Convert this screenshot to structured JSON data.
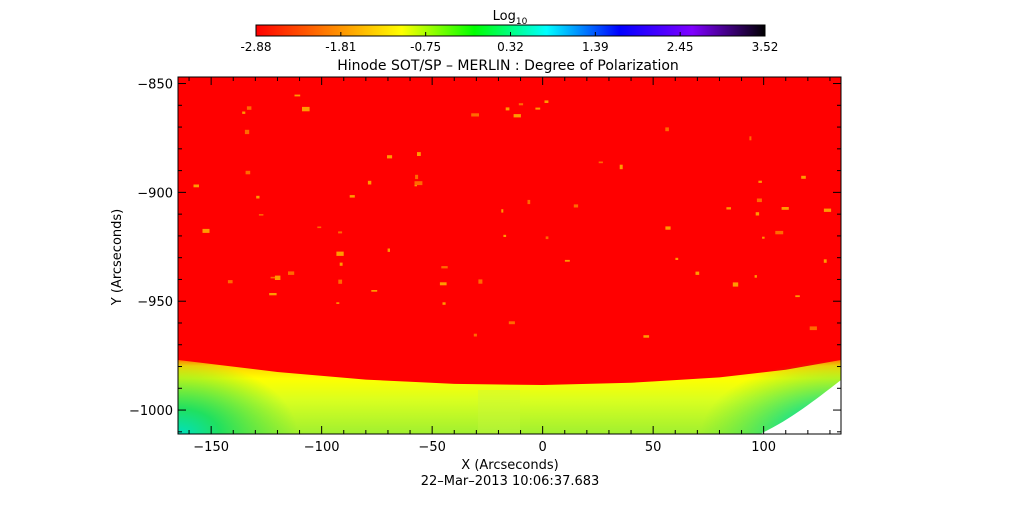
{
  "colorbar": {
    "label": "Log",
    "label_sub": "10",
    "ticks": [
      "-2.88",
      "-1.81",
      "-0.75",
      "0.32",
      "1.39",
      "2.45",
      "3.52"
    ],
    "stops": [
      "#ff0000",
      "#ff7f00",
      "#ffff00",
      "#00ff00",
      "#00ffff",
      "#0000ff",
      "#7f00ff",
      "#000000"
    ]
  },
  "chart_data": {
    "type": "heatmap",
    "title": "Hinode SOT/SP – MERLIN : Degree of Polarization",
    "xlabel": "X (Arcseconds)",
    "ylabel": "Y (Arcseconds)",
    "xlim": [
      -165,
      135
    ],
    "ylim": [
      -1011,
      -847
    ],
    "x_ticks": [
      {
        "value": -150,
        "label": "−150"
      },
      {
        "value": -100,
        "label": "−100"
      },
      {
        "value": -50,
        "label": "−50"
      },
      {
        "value": 0,
        "label": "0"
      },
      {
        "value": 50,
        "label": "50"
      },
      {
        "value": 100,
        "label": "100"
      }
    ],
    "y_ticks": [
      {
        "value": -850,
        "label": "−850"
      },
      {
        "value": -900,
        "label": "−900"
      },
      {
        "value": -950,
        "label": "−950"
      },
      {
        "value": -1000,
        "label": "−1000"
      }
    ],
    "colorscale_range": [
      -2.88,
      3.52
    ],
    "limb_curve": {
      "x": [
        -165,
        -120,
        -80,
        -40,
        0,
        40,
        80,
        110,
        135
      ],
      "y": [
        -977,
        -982.5,
        -986,
        -988,
        -988.5,
        -987.5,
        -985,
        -981.5,
        -977
      ]
    },
    "background_log10": -2.88,
    "limb_band_log10": -1.3,
    "off_limb_log10": -0.3,
    "corner_log10": 0.6
  },
  "footer": {
    "timestamp": "22–Mar–2013 10:06:37.683"
  }
}
